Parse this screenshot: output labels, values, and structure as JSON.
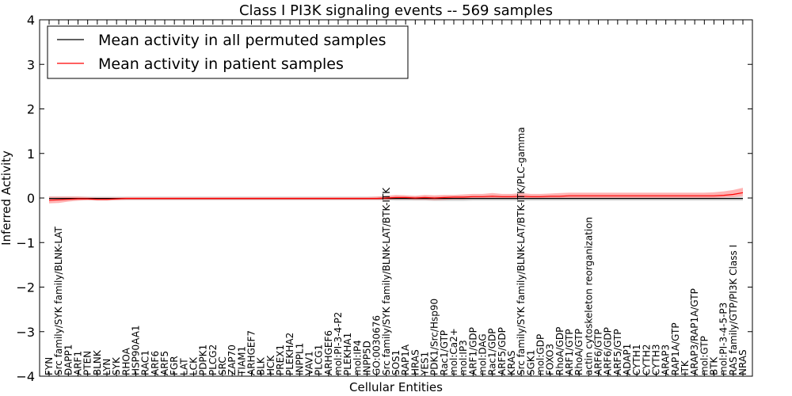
{
  "chart_data": {
    "type": "line",
    "title": "Class I PI3K signaling events -- 569 samples",
    "xlabel": "Cellular Entities",
    "ylabel": "Inferred Activity",
    "ylim": [
      -4,
      4
    ],
    "yticks": [
      4,
      3,
      2,
      1,
      0,
      -1,
      -2,
      -3,
      -4
    ],
    "ytick_labels": [
      "4",
      "3",
      "2",
      "1",
      "0",
      "−1",
      "−2",
      "−3",
      "−4"
    ],
    "legend_position": "top-left",
    "categories": [
      "FYN",
      "Src family/SYK family/BLNK-LAT",
      "DAPP1",
      "ARF1",
      "PTEN",
      "BLNK",
      "LYN",
      "SYK",
      "RHOA",
      "HSP90AA1",
      "RAC1",
      "ARF6",
      "ARF5",
      "FGR",
      "LAT",
      "LCK",
      "PDPK1",
      "PLCG2",
      "SRC",
      "ZAP70",
      "TIAM1",
      "ARHGEF7",
      "BLK",
      "HCK",
      "PREX1",
      "PLEKHA2",
      "INPPL1",
      "VAV1",
      "PLCG1",
      "ARHGEF6",
      "mol:PI-3-4-P2",
      "PLEKHA1",
      "mol:IP4",
      "INPP5D",
      "GO:0030676",
      "Src family/SYK family/BLNK-LAT/BTK-ITK",
      "SOS1",
      "RAP1A",
      "HRAS",
      "YES1",
      "PDK1/Src/Hsp90",
      "Rac1/GTP",
      "mol:Ca2+",
      "mol:IP3",
      "ARF1/GDP",
      "mol:DAG",
      "Rac1/GDP",
      "ARF5/GDP",
      "KRAS",
      "Src family/SYK family/BLNK-LAT/BTK-ITK/PLC-gamma",
      "SGK1",
      "mol:GDP",
      "FOXO3",
      "RhoA/GDP",
      "ARF1/GTP",
      "RhoA/GTP",
      "actin cytoskeleton reorganization",
      "ARF6/GTP",
      "ARF6/GDP",
      "ARF5/GTP",
      "ADAP1",
      "CYTH1",
      "CYTH2",
      "CYTH3",
      "ARAP3",
      "RAP1A/GTP",
      "ITK",
      "ARAP3/RAP1A/GTP",
      "mol:GTP",
      "BTK",
      "mol:PI-3-4-5-P3",
      "RAS family/GTP/PI3K Class I",
      "NRAS"
    ],
    "series": [
      {
        "name": "Mean activity in all permuted samples",
        "color": "#000000",
        "band_color": "#c0c0c0",
        "values": [
          -0.01,
          -0.01,
          -0.01,
          -0.01,
          -0.01,
          -0.01,
          -0.01,
          -0.01,
          -0.01,
          -0.01,
          -0.01,
          -0.01,
          -0.01,
          -0.01,
          -0.01,
          -0.01,
          -0.01,
          -0.01,
          -0.01,
          -0.01,
          -0.01,
          -0.01,
          -0.01,
          -0.01,
          -0.01,
          -0.01,
          -0.01,
          -0.01,
          -0.01,
          -0.01,
          -0.01,
          -0.01,
          -0.01,
          -0.01,
          -0.01,
          -0.01,
          -0.01,
          -0.01,
          -0.01,
          -0.01,
          -0.01,
          -0.01,
          -0.01,
          -0.01,
          -0.01,
          -0.01,
          -0.01,
          -0.01,
          -0.01,
          -0.01,
          -0.01,
          -0.01,
          -0.01,
          -0.01,
          -0.01,
          -0.01,
          -0.01,
          -0.01,
          -0.01,
          -0.01,
          -0.01,
          -0.01,
          -0.01,
          -0.01,
          -0.01,
          -0.01,
          -0.01,
          -0.01,
          -0.01,
          -0.01,
          -0.01,
          -0.01,
          -0.01
        ],
        "lower": [
          -0.05,
          -0.05,
          -0.05,
          -0.05,
          -0.05,
          -0.05,
          -0.05,
          -0.05,
          -0.05,
          -0.05,
          -0.05,
          -0.05,
          -0.05,
          -0.05,
          -0.05,
          -0.05,
          -0.05,
          -0.05,
          -0.05,
          -0.05,
          -0.05,
          -0.05,
          -0.05,
          -0.05,
          -0.05,
          -0.05,
          -0.05,
          -0.05,
          -0.05,
          -0.05,
          -0.05,
          -0.05,
          -0.05,
          -0.05,
          -0.05,
          -0.05,
          -0.06,
          -0.06,
          -0.06,
          -0.06,
          -0.07,
          -0.07,
          -0.07,
          -0.07,
          -0.06,
          -0.06,
          -0.06,
          -0.06,
          -0.06,
          -0.06,
          -0.06,
          -0.06,
          -0.06,
          -0.06,
          -0.06,
          -0.06,
          -0.06,
          -0.06,
          -0.06,
          -0.06,
          -0.06,
          -0.06,
          -0.06,
          -0.06,
          -0.06,
          -0.06,
          -0.06,
          -0.06,
          -0.06,
          -0.06,
          -0.06,
          -0.06,
          -0.06
        ],
        "upper": [
          0.03,
          0.03,
          0.03,
          0.03,
          0.03,
          0.03,
          0.03,
          0.03,
          0.03,
          0.03,
          0.03,
          0.03,
          0.03,
          0.03,
          0.03,
          0.03,
          0.03,
          0.03,
          0.03,
          0.03,
          0.03,
          0.03,
          0.03,
          0.03,
          0.03,
          0.03,
          0.03,
          0.03,
          0.03,
          0.03,
          0.03,
          0.03,
          0.03,
          0.03,
          0.03,
          0.03,
          0.03,
          0.03,
          0.03,
          0.03,
          0.03,
          0.03,
          0.03,
          0.03,
          0.03,
          0.03,
          0.03,
          0.03,
          0.03,
          0.03,
          0.03,
          0.03,
          0.03,
          0.03,
          0.03,
          0.03,
          0.03,
          0.03,
          0.03,
          0.03,
          0.03,
          0.03,
          0.03,
          0.03,
          0.03,
          0.03,
          0.03,
          0.03,
          0.03,
          0.03,
          0.03,
          0.03,
          0.03
        ]
      },
      {
        "name": "Mean activity in patient samples",
        "color": "#ff0000",
        "band_color": "#ff8080",
        "values": [
          -0.05,
          -0.04,
          -0.03,
          -0.02,
          -0.02,
          -0.03,
          -0.03,
          -0.02,
          -0.01,
          -0.01,
          -0.01,
          -0.01,
          -0.01,
          -0.01,
          -0.01,
          -0.01,
          -0.01,
          -0.01,
          -0.01,
          -0.01,
          -0.01,
          -0.01,
          -0.01,
          -0.01,
          -0.01,
          -0.01,
          -0.01,
          -0.01,
          -0.01,
          -0.01,
          -0.01,
          -0.01,
          -0.01,
          -0.01,
          -0.01,
          0.0,
          0.01,
          0.01,
          0.0,
          0.01,
          0.0,
          0.01,
          0.02,
          0.02,
          0.03,
          0.03,
          0.04,
          0.03,
          0.03,
          0.04,
          0.03,
          0.03,
          0.04,
          0.04,
          0.05,
          0.05,
          0.05,
          0.05,
          0.05,
          0.05,
          0.05,
          0.05,
          0.05,
          0.05,
          0.05,
          0.05,
          0.05,
          0.05,
          0.05,
          0.05,
          0.06,
          0.08,
          0.12
        ],
        "lower": [
          -0.12,
          -0.11,
          -0.08,
          -0.06,
          -0.05,
          -0.06,
          -0.06,
          -0.05,
          -0.04,
          -0.04,
          -0.04,
          -0.04,
          -0.04,
          -0.04,
          -0.04,
          -0.04,
          -0.04,
          -0.04,
          -0.04,
          -0.04,
          -0.04,
          -0.04,
          -0.04,
          -0.04,
          -0.04,
          -0.04,
          -0.04,
          -0.04,
          -0.04,
          -0.04,
          -0.04,
          -0.04,
          -0.04,
          -0.04,
          -0.04,
          -0.04,
          -0.03,
          -0.03,
          -0.04,
          -0.04,
          -0.05,
          -0.04,
          -0.03,
          -0.03,
          -0.02,
          -0.02,
          -0.02,
          -0.02,
          -0.02,
          -0.01,
          -0.02,
          -0.02,
          -0.01,
          -0.01,
          0.0,
          0.0,
          0.0,
          0.0,
          0.0,
          0.0,
          0.0,
          0.0,
          0.0,
          0.0,
          0.0,
          0.0,
          0.0,
          0.0,
          0.0,
          0.0,
          0.01,
          0.02,
          0.04
        ],
        "upper": [
          0.03,
          0.03,
          0.03,
          0.03,
          0.02,
          0.01,
          0.01,
          0.01,
          0.02,
          0.02,
          0.02,
          0.02,
          0.02,
          0.02,
          0.02,
          0.02,
          0.02,
          0.02,
          0.02,
          0.02,
          0.02,
          0.02,
          0.02,
          0.02,
          0.02,
          0.02,
          0.02,
          0.02,
          0.02,
          0.02,
          0.02,
          0.02,
          0.02,
          0.02,
          0.03,
          0.05,
          0.07,
          0.06,
          0.05,
          0.07,
          0.06,
          0.07,
          0.07,
          0.08,
          0.09,
          0.09,
          0.11,
          0.09,
          0.09,
          0.11,
          0.09,
          0.09,
          0.1,
          0.11,
          0.12,
          0.12,
          0.12,
          0.12,
          0.12,
          0.12,
          0.12,
          0.12,
          0.12,
          0.12,
          0.12,
          0.12,
          0.12,
          0.12,
          0.12,
          0.13,
          0.15,
          0.18,
          0.23
        ]
      }
    ]
  }
}
